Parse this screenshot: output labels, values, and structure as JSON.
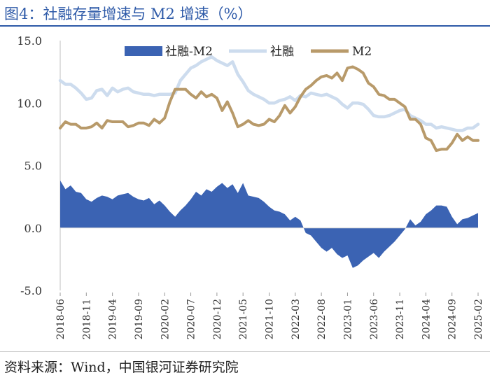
{
  "header": {
    "title": "图4：社融存量增速与 M2 增速（%）"
  },
  "footer": {
    "source": "资料来源：Wind，中国银河证券研究院"
  },
  "colors": {
    "title": "#2e5aa8",
    "spread_area": "#3b63b3",
    "tsf_line": "#cddcee",
    "m2_line": "#b89a6a"
  },
  "chart_data": {
    "type": "line",
    "title": "",
    "xlabel": "",
    "ylabel": "",
    "ylim": [
      -5,
      15
    ],
    "yticks": [
      "15.0",
      "10.0",
      "5.0",
      "0.0",
      "-5.0"
    ],
    "ytick_values": [
      15,
      10,
      5,
      0,
      -5
    ],
    "grid": false,
    "legend_position": "top",
    "x_start": "2018-06",
    "xtick_labels": [
      "2018-06",
      "2018-11",
      "2019-04",
      "2019-09",
      "2020-02",
      "2020-07",
      "2020-12",
      "2021-05",
      "2021-10",
      "2022-03",
      "2022-08",
      "2023-01",
      "2023-06",
      "2023-11",
      "2024-04",
      "2024-09",
      "2025-02"
    ],
    "xtick_index": [
      0,
      5,
      10,
      15,
      20,
      25,
      30,
      35,
      40,
      45,
      50,
      55,
      60,
      65,
      70,
      75,
      80
    ],
    "series": [
      {
        "name": "社融-M2",
        "style": "area",
        "values": [
          3.8,
          3.1,
          3.4,
          2.9,
          2.8,
          2.3,
          2.1,
          2.4,
          2.6,
          2.5,
          2.3,
          2.6,
          2.7,
          2.8,
          2.5,
          2.3,
          2.2,
          2.4,
          1.9,
          2.2,
          1.8,
          1.3,
          0.9,
          1.4,
          1.8,
          2.3,
          2.9,
          2.6,
          3.1,
          2.9,
          3.3,
          3.6,
          3.2,
          3.5,
          2.8,
          3.6,
          2.6,
          2.5,
          2.4,
          2.1,
          1.7,
          1.4,
          1.3,
          1.1,
          0.6,
          0.9,
          0.6,
          -0.4,
          -0.6,
          -1.1,
          -1.6,
          -1.9,
          -1.6,
          -2.1,
          -2.4,
          -2.2,
          -3.2,
          -3.0,
          -2.6,
          -2.3,
          -2.0,
          -2.4,
          -1.9,
          -1.5,
          -1.1,
          -0.6,
          -0.1,
          0.7,
          0.2,
          0.5,
          1.1,
          1.4,
          1.8,
          1.8,
          1.7,
          0.9,
          0.3,
          0.7,
          0.8,
          1.0,
          1.2
        ]
      },
      {
        "name": "社融",
        "style": "line",
        "values": [
          11.8,
          11.5,
          11.5,
          11.2,
          10.8,
          10.3,
          10.4,
          11.0,
          11.1,
          10.6,
          11.2,
          10.9,
          11.1,
          11.2,
          10.9,
          10.8,
          10.7,
          10.7,
          10.6,
          10.7,
          10.7,
          10.7,
          10.8,
          11.8,
          12.3,
          12.8,
          13.0,
          13.3,
          13.5,
          13.7,
          13.4,
          13.2,
          13.0,
          13.3,
          12.3,
          11.7,
          11.0,
          10.7,
          10.5,
          10.3,
          10.0,
          10.0,
          10.2,
          10.3,
          10.5,
          10.2,
          10.6,
          10.5,
          10.8,
          10.7,
          10.6,
          10.7,
          10.5,
          10.3,
          9.9,
          9.6,
          10.0,
          10.0,
          9.9,
          9.5,
          9.0,
          8.9,
          8.9,
          9.0,
          9.2,
          9.4,
          9.5,
          9.0,
          8.8,
          8.6,
          8.3,
          8.3,
          8.0,
          8.1,
          8.0,
          7.9,
          7.8,
          7.8,
          8.0,
          8.0,
          8.3
        ]
      },
      {
        "name": "M2",
        "style": "line",
        "values": [
          8.0,
          8.5,
          8.3,
          8.3,
          8.0,
          8.0,
          8.1,
          8.4,
          8.0,
          8.6,
          8.5,
          8.5,
          8.5,
          8.1,
          8.2,
          8.4,
          8.4,
          8.2,
          8.7,
          8.4,
          8.8,
          10.1,
          11.1,
          11.1,
          11.1,
          10.7,
          10.4,
          10.9,
          10.5,
          10.7,
          10.4,
          9.4,
          10.1,
          9.2,
          8.1,
          8.3,
          8.6,
          8.3,
          8.2,
          8.3,
          8.7,
          8.5,
          9.0,
          9.8,
          9.2,
          9.7,
          10.5,
          11.1,
          11.4,
          11.8,
          12.1,
          12.2,
          12.0,
          12.4,
          11.8,
          12.8,
          12.9,
          12.7,
          12.4,
          11.6,
          11.3,
          10.7,
          10.6,
          10.3,
          10.3,
          10.0,
          9.7,
          8.7,
          8.7,
          8.3,
          7.2,
          7.0,
          6.2,
          6.3,
          6.3,
          6.8,
          7.5,
          7.0,
          7.3,
          7.0,
          7.0
        ]
      }
    ]
  }
}
